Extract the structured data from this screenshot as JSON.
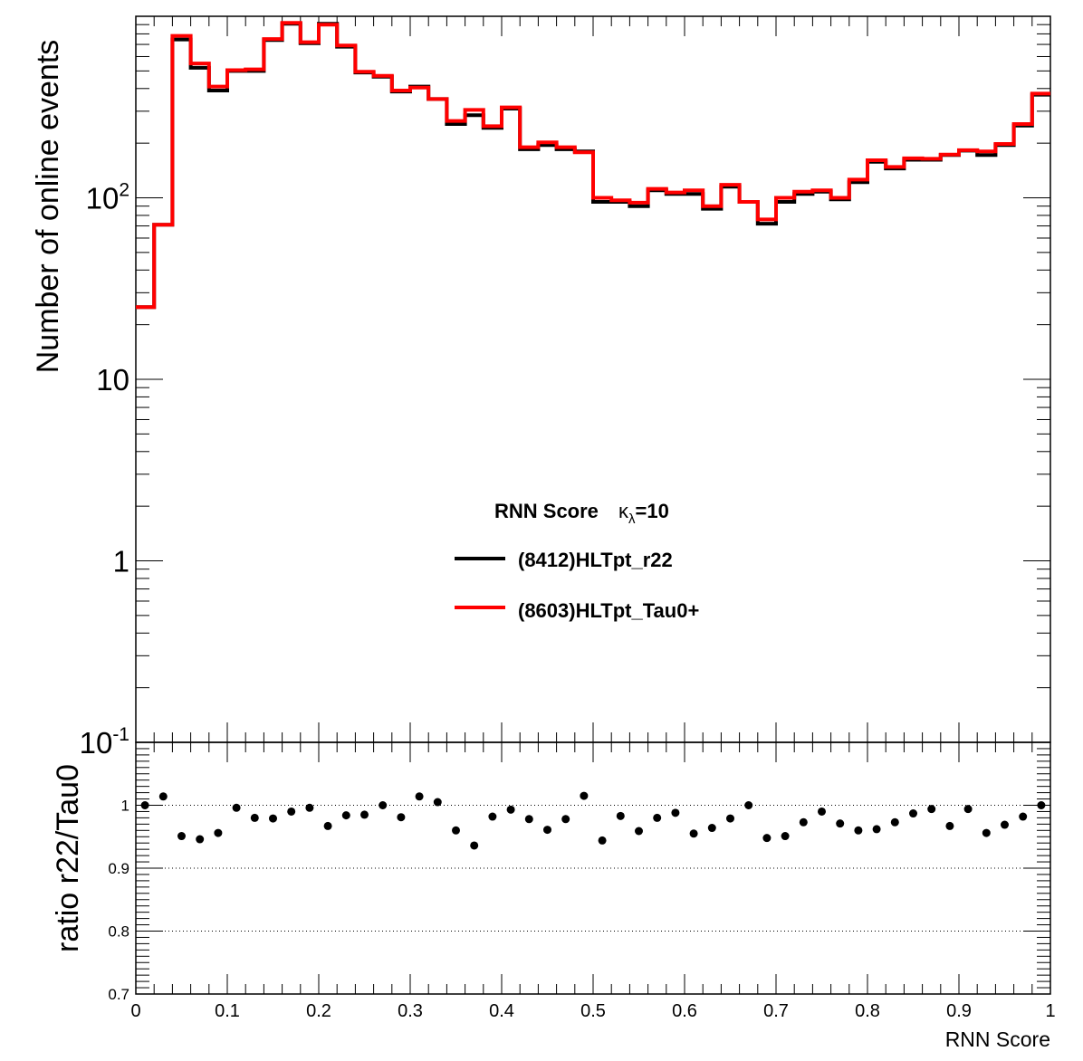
{
  "chart_data": [
    {
      "type": "line",
      "panel": "main",
      "drawstyle": "steps (histogram)",
      "y_scale": "log",
      "ylabel": "Number of online events",
      "xlim": [
        0,
        1
      ],
      "ylim": [
        0.1,
        1000
      ],
      "y_tick_labels": [
        "10^-1",
        "1",
        "10",
        "10^2"
      ],
      "legend": {
        "title": "RNN Score",
        "title_symbol": "κ",
        "title_symbol_sub": "λ",
        "title_value": "=10",
        "placement": "center"
      },
      "x": [
        0.01,
        0.03,
        0.05,
        0.07,
        0.09,
        0.11,
        0.13,
        0.15,
        0.17,
        0.19,
        0.21,
        0.23,
        0.25,
        0.27,
        0.29,
        0.31,
        0.33,
        0.35,
        0.37,
        0.39,
        0.41,
        0.43,
        0.45,
        0.47,
        0.49,
        0.51,
        0.53,
        0.55,
        0.57,
        0.59,
        0.61,
        0.63,
        0.65,
        0.67,
        0.69,
        0.71,
        0.73,
        0.75,
        0.77,
        0.79,
        0.81,
        0.83,
        0.85,
        0.87,
        0.89,
        0.91,
        0.93,
        0.95,
        0.97,
        0.99
      ],
      "series": [
        {
          "name": "(8412)HLTpt_r22",
          "color": "#000000",
          "values": [
            25,
            71,
            745,
            520,
            390,
            500,
            500,
            740,
            910,
            710,
            910,
            680,
            490,
            465,
            385,
            410,
            350,
            255,
            285,
            243,
            310,
            185,
            195,
            185,
            180,
            95,
            95,
            90,
            110,
            105,
            105,
            87,
            115,
            95,
            72,
            95,
            105,
            108,
            98,
            122,
            158,
            145,
            162,
            162,
            172,
            182,
            172,
            195,
            250,
            370
          ]
        },
        {
          "name": "(8603)HLTpt_Tau0+",
          "color": "#ff0000",
          "values": [
            25,
            71,
            780,
            550,
            410,
            505,
            510,
            750,
            920,
            720,
            900,
            690,
            495,
            470,
            390,
            405,
            350,
            265,
            305,
            248,
            315,
            190,
            202,
            190,
            178,
            100,
            97,
            94,
            112,
            107,
            110,
            90,
            118,
            95,
            76,
            100,
            108,
            110,
            100,
            126,
            161,
            148,
            165,
            164,
            173,
            183,
            180,
            198,
            255,
            375
          ]
        }
      ]
    },
    {
      "type": "scatter",
      "panel": "ratio",
      "ylabel": "ratio r22/Tau0",
      "xlabel": "RNN Score",
      "xlim": [
        0,
        1
      ],
      "ylim": [
        0.7,
        1.1
      ],
      "grid": "horizontal dotted at 0.8, 0.9, 1",
      "x_tick_labels": [
        "0",
        "0.1",
        "0.2",
        "0.3",
        "0.4",
        "0.5",
        "0.6",
        "0.7",
        "0.8",
        "0.9",
        "1"
      ],
      "y_tick_labels": [
        "0.7",
        "0.8",
        "0.9",
        "1"
      ],
      "x": [
        0.01,
        0.03,
        0.05,
        0.07,
        0.09,
        0.11,
        0.13,
        0.15,
        0.17,
        0.19,
        0.21,
        0.23,
        0.25,
        0.27,
        0.29,
        0.31,
        0.33,
        0.35,
        0.37,
        0.39,
        0.41,
        0.43,
        0.45,
        0.47,
        0.49,
        0.51,
        0.53,
        0.55,
        0.57,
        0.59,
        0.61,
        0.63,
        0.65,
        0.67,
        0.69,
        0.71,
        0.73,
        0.75,
        0.77,
        0.79,
        0.81,
        0.83,
        0.85,
        0.87,
        0.89,
        0.91,
        0.93,
        0.95,
        0.97,
        0.99
      ],
      "values": [
        1.0,
        1.014,
        0.951,
        0.946,
        0.956,
        0.996,
        0.98,
        0.979,
        0.99,
        0.996,
        0.967,
        0.984,
        0.985,
        1.0,
        0.981,
        1.014,
        1.005,
        0.96,
        0.936,
        0.982,
        0.993,
        0.978,
        0.961,
        0.978,
        1.015,
        0.944,
        0.983,
        0.959,
        0.98,
        0.988,
        0.955,
        0.964,
        0.979,
        1.0,
        0.948,
        0.951,
        0.973,
        0.99,
        0.971,
        0.96,
        0.962,
        0.973,
        0.987,
        0.994,
        0.967,
        0.994,
        0.956,
        0.969,
        0.982,
        1.0
      ]
    }
  ]
}
